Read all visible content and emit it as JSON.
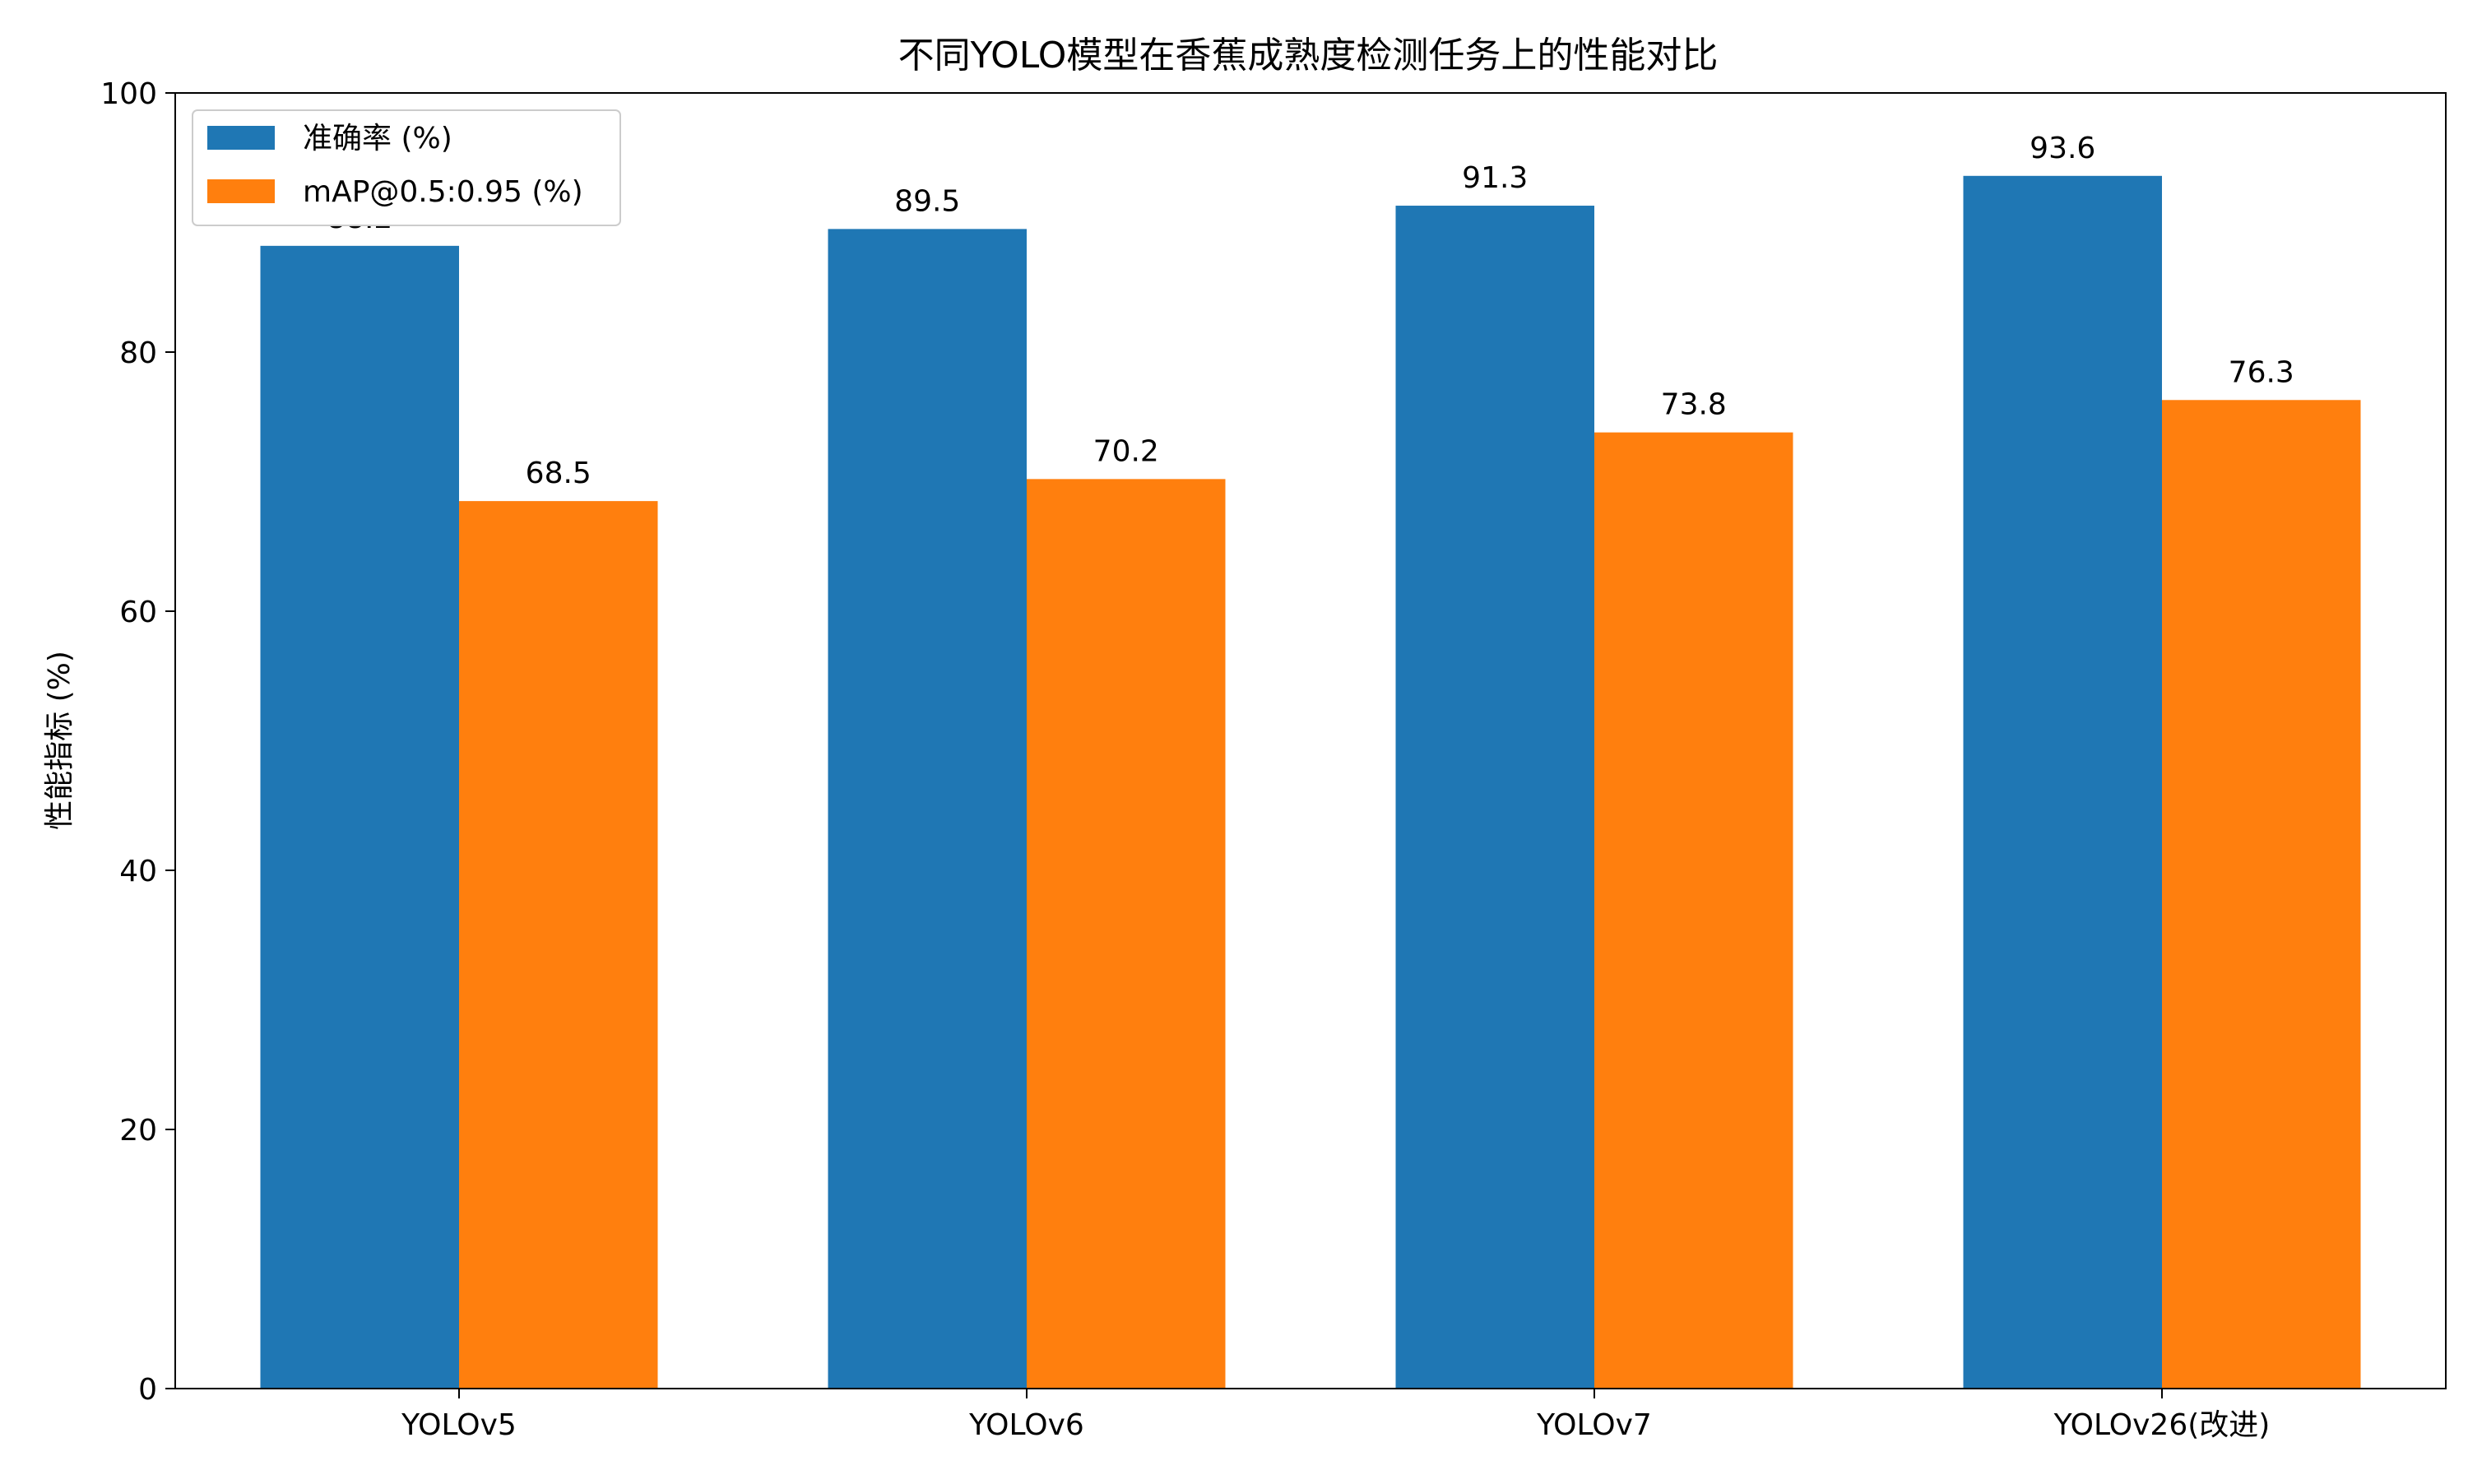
{
  "chart_data": {
    "type": "bar",
    "title": "不同YOLO模型在香蕉成熟度检测任务上的性能对比",
    "xlabel": "",
    "ylabel": "性能指标 (%)",
    "categories": [
      "YOLOv5",
      "YOLOv6",
      "YOLOv7",
      "YOLOv26(改进)"
    ],
    "series": [
      {
        "name": "准确率 (%)",
        "values": [
          88.2,
          89.5,
          91.3,
          93.6
        ],
        "color": "#1f77b4",
        "labels": [
          "88.2",
          "89.5",
          "91.3",
          "93.6"
        ]
      },
      {
        "name": "mAP@0.5:0.95 (%)",
        "values": [
          68.5,
          70.2,
          73.8,
          76.3
        ],
        "color": "#ff7f0e",
        "labels": [
          "68.5",
          "70.2",
          "73.8",
          "76.3"
        ]
      }
    ],
    "ylim": [
      0,
      100
    ],
    "yticks": [
      0,
      20,
      40,
      60,
      80,
      100
    ],
    "ytick_labels": [
      "0",
      "20",
      "40",
      "60",
      "80",
      "100"
    ],
    "legend_position": "top-left",
    "grid": false
  }
}
